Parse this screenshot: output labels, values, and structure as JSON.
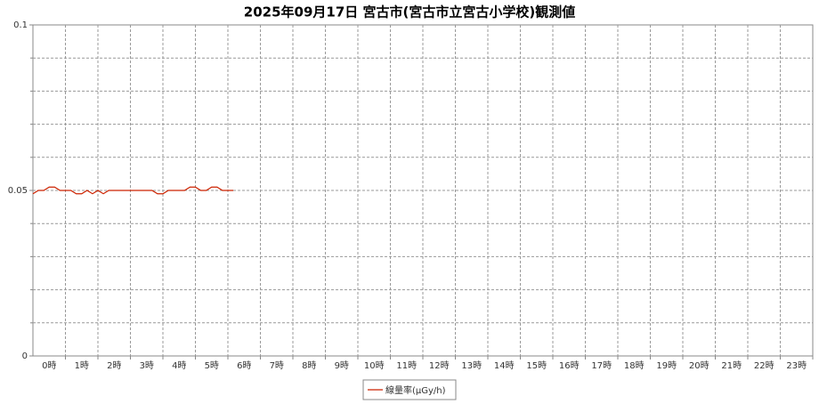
{
  "chart_data": {
    "type": "line",
    "title": "2025年09月17日 宮古市(宮古市立宮古小学校)観測値",
    "categories": [
      "0時",
      "1時",
      "2時",
      "3時",
      "4時",
      "5時",
      "6時",
      "7時",
      "8時",
      "9時",
      "10時",
      "11時",
      "12時",
      "13時",
      "14時",
      "15時",
      "16時",
      "17時",
      "18時",
      "19時",
      "20時",
      "21時",
      "22時",
      "23時"
    ],
    "xlim": [
      0,
      1440
    ],
    "x": [
      0,
      10,
      20,
      30,
      40,
      50,
      60,
      70,
      80,
      90,
      100,
      110,
      120,
      130,
      140,
      150,
      160,
      170,
      180,
      190,
      200,
      210,
      220,
      230,
      240,
      250,
      260,
      270,
      280,
      290,
      300,
      310,
      320,
      330,
      340,
      350,
      360,
      370
    ],
    "series": [
      {
        "name": "線量率(μGy/h)",
        "color": "#cc2200",
        "values": [
          0.049,
          0.05,
          0.05,
          0.051,
          0.051,
          0.05,
          0.05,
          0.05,
          0.049,
          0.049,
          0.05,
          0.049,
          0.05,
          0.049,
          0.05,
          0.05,
          0.05,
          0.05,
          0.05,
          0.05,
          0.05,
          0.05,
          0.05,
          0.049,
          0.049,
          0.05,
          0.05,
          0.05,
          0.05,
          0.051,
          0.051,
          0.05,
          0.05,
          0.051,
          0.051,
          0.05,
          0.05,
          0.05
        ]
      }
    ],
    "ylim": [
      0,
      0.1
    ],
    "yticks": [
      0,
      0.05,
      0.1
    ],
    "y_gridlines": [
      0.01,
      0.02,
      0.03,
      0.04,
      0.05,
      0.06,
      0.07,
      0.08,
      0.09
    ],
    "grid": true
  }
}
